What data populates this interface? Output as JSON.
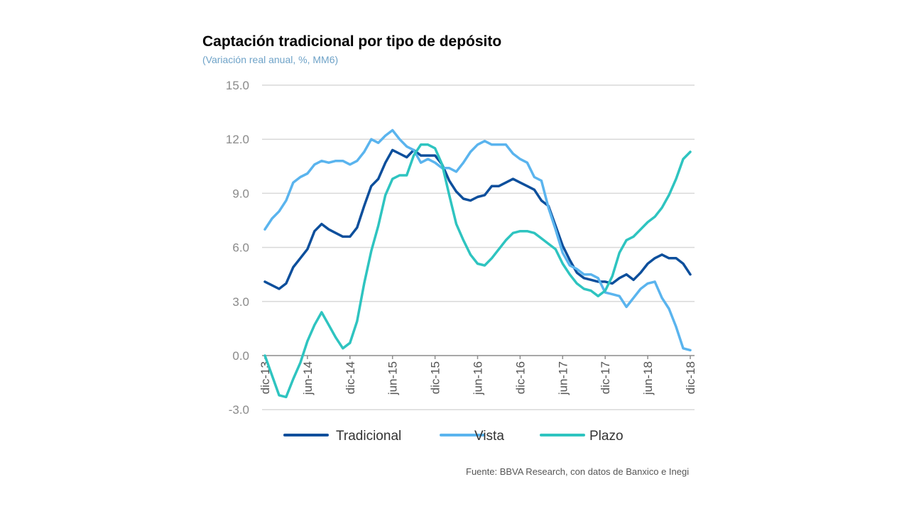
{
  "chart_data": {
    "type": "line",
    "title": "Captación tradicional por tipo de depósito",
    "subtitle": "(Variación real anual,  %, MM6)",
    "xlabel": "",
    "ylabel": "",
    "ylim": [
      -3.0,
      15.0
    ],
    "yticks": [
      "15.0",
      "12.0",
      "9.0",
      "6.0",
      "3.0",
      "0.0",
      "-3.0"
    ],
    "ytick_values": [
      15,
      12,
      9,
      6,
      3,
      0,
      -3
    ],
    "xtick_labels": [
      "dic-13",
      "jun-14",
      "dic-14",
      "jun-15",
      "dic-15",
      "jun-16",
      "dic-16",
      "jun-17",
      "dic-17",
      "jun-18",
      "dic-18"
    ],
    "xtick_months": [
      0,
      6,
      12,
      18,
      24,
      30,
      36,
      42,
      48,
      54,
      60
    ],
    "n_points": 61,
    "grid": true,
    "legend_position": "bottom",
    "series": [
      {
        "name": "Tradicional",
        "color": "#0d4f9c",
        "values": [
          4.1,
          3.9,
          3.7,
          4.0,
          4.9,
          5.4,
          5.9,
          6.9,
          7.3,
          7.0,
          6.8,
          6.6,
          6.6,
          7.1,
          8.3,
          9.4,
          9.8,
          10.7,
          11.4,
          11.2,
          11.0,
          11.4,
          11.1,
          11.1,
          11.1,
          10.6,
          9.7,
          9.1,
          8.7,
          8.6,
          8.8,
          8.9,
          9.4,
          9.4,
          9.6,
          9.8,
          9.6,
          9.4,
          9.2,
          8.6,
          8.3,
          7.2,
          6.1,
          5.3,
          4.6,
          4.3,
          4.2,
          4.1,
          4.1,
          4.0,
          4.3,
          4.5,
          4.2,
          4.6,
          5.1,
          5.4,
          5.6,
          5.4,
          5.4,
          5.1,
          4.5
        ]
      },
      {
        "name": "Vista",
        "color": "#5ab4ee",
        "values": [
          7.0,
          7.6,
          8.0,
          8.6,
          9.6,
          9.9,
          10.1,
          10.6,
          10.8,
          10.7,
          10.8,
          10.8,
          10.6,
          10.8,
          11.3,
          12.0,
          11.8,
          12.2,
          12.5,
          12.0,
          11.6,
          11.4,
          10.7,
          10.9,
          10.7,
          10.4,
          10.4,
          10.2,
          10.7,
          11.3,
          11.7,
          11.9,
          11.7,
          11.7,
          11.7,
          11.2,
          10.9,
          10.7,
          9.9,
          9.7,
          8.2,
          7.0,
          5.7,
          5.0,
          4.8,
          4.5,
          4.5,
          4.3,
          3.5,
          3.4,
          3.3,
          2.7,
          3.2,
          3.7,
          4.0,
          4.1,
          3.2,
          2.6,
          1.6,
          0.4,
          0.3
        ]
      },
      {
        "name": "Plazo",
        "color": "#2ec4c0",
        "values": [
          0.0,
          -1.1,
          -2.2,
          -2.3,
          -1.3,
          -0.4,
          0.8,
          1.7,
          2.4,
          1.7,
          1.0,
          0.4,
          0.7,
          1.9,
          4.0,
          5.8,
          7.2,
          8.9,
          9.8,
          10.0,
          10.0,
          11.1,
          11.7,
          11.7,
          11.5,
          10.6,
          8.9,
          7.3,
          6.4,
          5.6,
          5.1,
          5.0,
          5.4,
          5.9,
          6.4,
          6.8,
          6.9,
          6.9,
          6.8,
          6.5,
          6.2,
          5.9,
          5.1,
          4.5,
          4.0,
          3.7,
          3.6,
          3.3,
          3.6,
          4.4,
          5.7,
          6.4,
          6.6,
          7.0,
          7.4,
          7.7,
          8.2,
          8.9,
          9.8,
          10.9,
          11.3
        ]
      }
    ]
  },
  "source": "Fuente: BBVA Research, con datos de Banxico e Inegi"
}
